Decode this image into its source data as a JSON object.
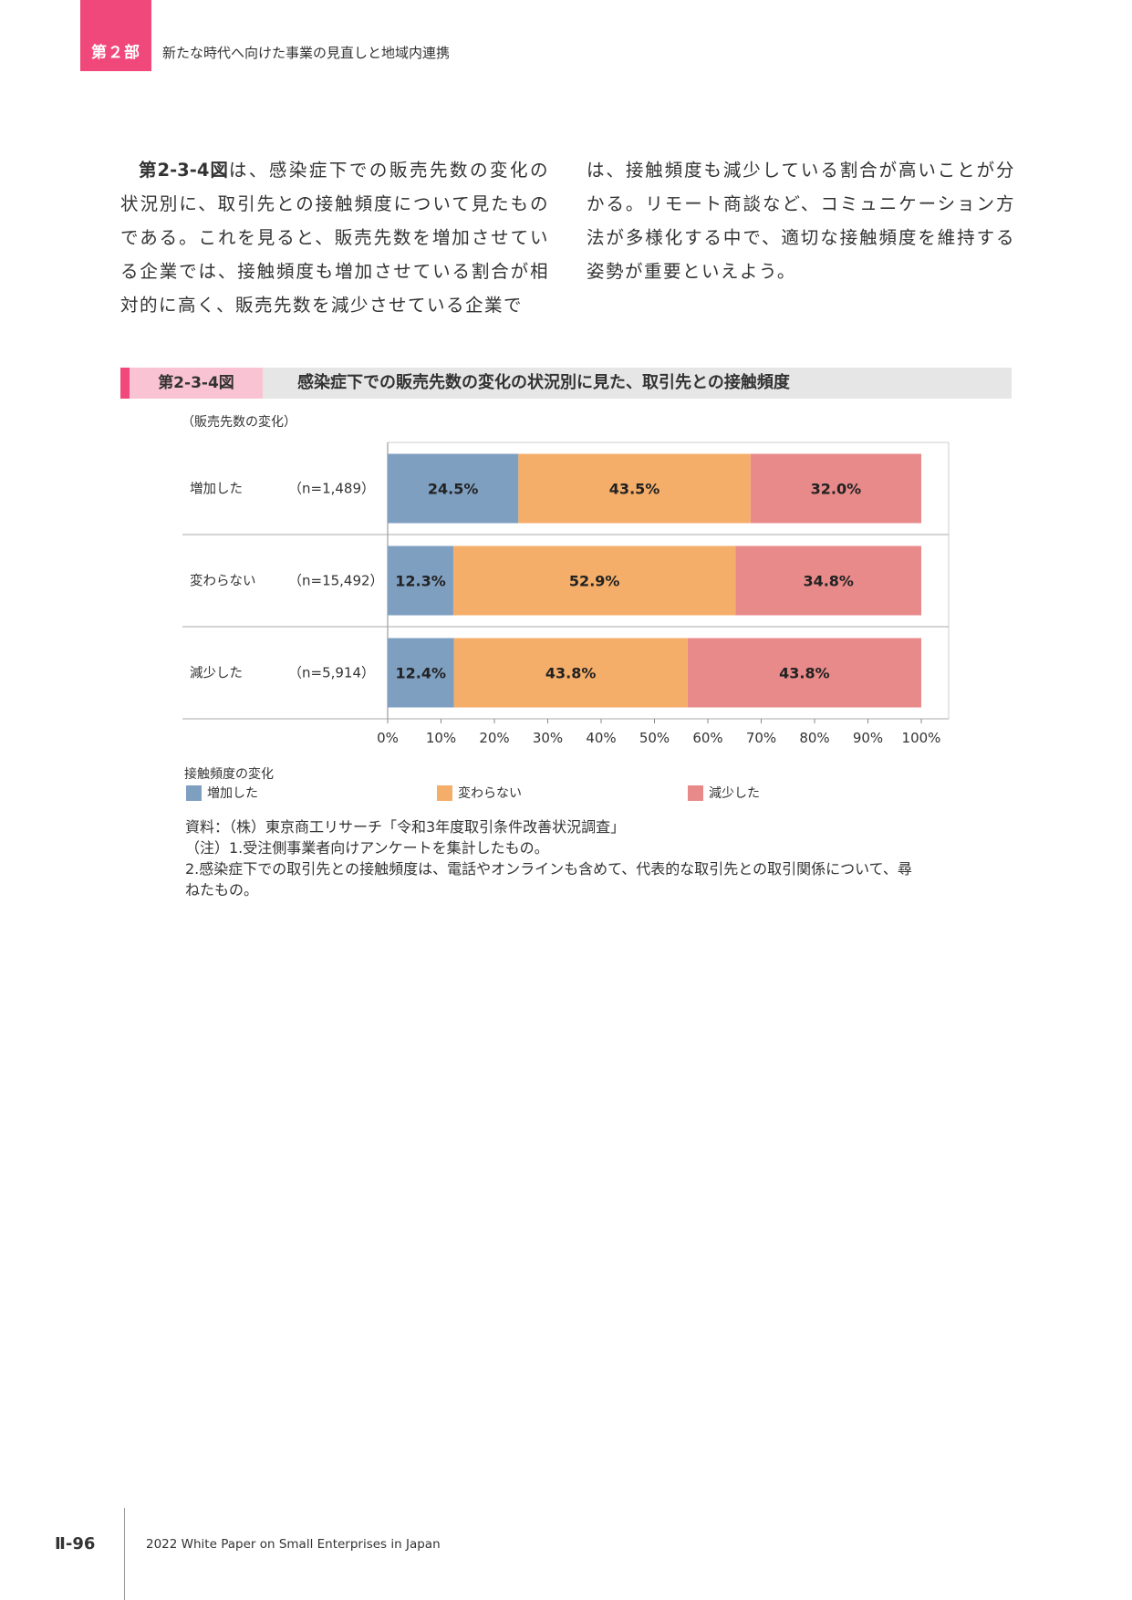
{
  "header": {
    "part_label": "第２部",
    "part_title": "新たな時代へ向けた事業の見直しと地域内連携"
  },
  "body_text": {
    "left_lead": "第2-3-4図",
    "left_rest": "は、感染症下での販売先数の変化の状況別に、取引先との接触頻度について見たものである。これを見ると、販売先数を増加させている企業では、接触頻度も増加させている割合が相対的に高く、販売先数を減少させている企業で",
    "right": "は、接触頻度も減少している割合が高いことが分かる。リモート商談など、コミュニケーション方法が多様化する中で、適切な接触頻度を維持する姿勢が重要といえよう。"
  },
  "figure": {
    "number": "第2-3-4図",
    "title": "感染症下での販売先数の変化の状況別に見た、取引先との接触頻度",
    "axis_note": "（販売先数の変化）",
    "legend_title": "接触頻度の変化"
  },
  "chart_data": {
    "type": "bar",
    "orientation": "horizontal",
    "stacked": true,
    "categories": [
      "増加した",
      "変わらない",
      "減少した"
    ],
    "category_n": [
      "（n=1,489）",
      "（n=15,492）",
      "（n=5,914）"
    ],
    "series": [
      {
        "name": "増加した",
        "values": [
          24.5,
          12.3,
          12.4
        ],
        "color": "#7f9fc1"
      },
      {
        "name": "変わらない",
        "values": [
          43.5,
          52.9,
          43.8
        ],
        "color": "#f4ae6a"
      },
      {
        "name": "減少した",
        "values": [
          32.0,
          34.8,
          43.8
        ],
        "color": "#e88a8a"
      }
    ],
    "xlim": [
      0,
      100
    ],
    "xticks": [
      "0%",
      "10%",
      "20%",
      "30%",
      "40%",
      "50%",
      "60%",
      "70%",
      "80%",
      "90%",
      "100%"
    ],
    "legend_position": "bottom"
  },
  "notes": {
    "source": "資料：（株）東京商工リサーチ「令和3年度取引条件改善状況調査」",
    "note1": "（注）1.受注側事業者向けアンケートを集計したもの。",
    "note2a": "2.感染症下での取引先との接触頻度は、電話やオンラインも含めて、代表的な取引先との取引関係について、尋",
    "note2b": "ねたもの。"
  },
  "footer": {
    "page_number": "Ⅱ-96",
    "publication": "2022 White Paper on Small Enterprises in Japan"
  }
}
